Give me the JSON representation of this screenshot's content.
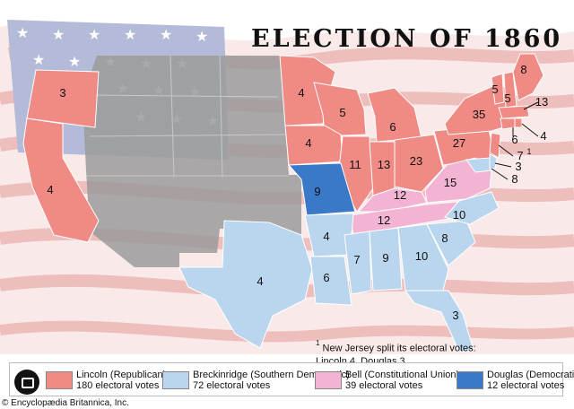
{
  "title": "ELECTION OF 1860",
  "colors": {
    "lincoln": "#f08a84",
    "breckinridge": "#b9d6ee",
    "bell": "#f3b4d4",
    "douglas": "#3a79c8",
    "flag_blue": "#9aa5cc",
    "flag_red": "#e89a98"
  },
  "states": [
    {
      "id": "OR",
      "candidate": "lincoln",
      "votes": "3"
    },
    {
      "id": "CA",
      "candidate": "lincoln",
      "votes": "4"
    },
    {
      "id": "MN",
      "candidate": "lincoln",
      "votes": "4"
    },
    {
      "id": "WI",
      "candidate": "lincoln",
      "votes": "5"
    },
    {
      "id": "IA",
      "candidate": "lincoln",
      "votes": "4"
    },
    {
      "id": "MI",
      "candidate": "lincoln",
      "votes": "6"
    },
    {
      "id": "IL",
      "candidate": "lincoln",
      "votes": "11"
    },
    {
      "id": "IN",
      "candidate": "lincoln",
      "votes": "13"
    },
    {
      "id": "OH",
      "candidate": "lincoln",
      "votes": "23"
    },
    {
      "id": "PA",
      "candidate": "lincoln",
      "votes": "27"
    },
    {
      "id": "NY",
      "candidate": "lincoln",
      "votes": "35"
    },
    {
      "id": "VT",
      "candidate": "lincoln",
      "votes": "5"
    },
    {
      "id": "NH",
      "candidate": "lincoln",
      "votes": "5"
    },
    {
      "id": "ME",
      "candidate": "lincoln",
      "votes": "8"
    },
    {
      "id": "MA",
      "candidate": "lincoln",
      "votes": "13"
    },
    {
      "id": "RI",
      "candidate": "lincoln",
      "votes": "4"
    },
    {
      "id": "CT",
      "candidate": "lincoln",
      "votes": "6"
    },
    {
      "id": "NJ",
      "candidate": "lincoln",
      "votes": "7"
    },
    {
      "id": "MO",
      "candidate": "douglas",
      "votes": "9"
    },
    {
      "id": "KY",
      "candidate": "bell",
      "votes": "12"
    },
    {
      "id": "TN",
      "candidate": "bell",
      "votes": "12"
    },
    {
      "id": "VA",
      "candidate": "bell",
      "votes": "15"
    },
    {
      "id": "DE",
      "candidate": "breckinridge",
      "votes": "3"
    },
    {
      "id": "MD",
      "candidate": "breckinridge",
      "votes": "8"
    },
    {
      "id": "NC",
      "candidate": "breckinridge",
      "votes": "10"
    },
    {
      "id": "SC",
      "candidate": "breckinridge",
      "votes": "8"
    },
    {
      "id": "GA",
      "candidate": "breckinridge",
      "votes": "10"
    },
    {
      "id": "FL",
      "candidate": "breckinridge",
      "votes": "3"
    },
    {
      "id": "AL",
      "candidate": "breckinridge",
      "votes": "9"
    },
    {
      "id": "MS",
      "candidate": "breckinridge",
      "votes": "7"
    },
    {
      "id": "LA",
      "candidate": "breckinridge",
      "votes": "6"
    },
    {
      "id": "AR",
      "candidate": "breckinridge",
      "votes": "4"
    },
    {
      "id": "TX",
      "candidate": "breckinridge",
      "votes": "4"
    }
  ],
  "footnote_marker": "1",
  "footnote": "New Jersey split its electoral votes: Lincoln 4, Douglas 3.",
  "legend": [
    {
      "name": "Lincoln (Republican)",
      "votes": "180 electoral votes"
    },
    {
      "name": "Breckinridge (Southern Democratic)",
      "votes": "72 electoral votes"
    },
    {
      "name": "Bell (Constitutional Union)",
      "votes": "39 electoral votes"
    },
    {
      "name": "Douglas (Democratic)",
      "votes": "12 electoral votes"
    }
  ],
  "credit": "© Encyclopædia Britannica, Inc."
}
